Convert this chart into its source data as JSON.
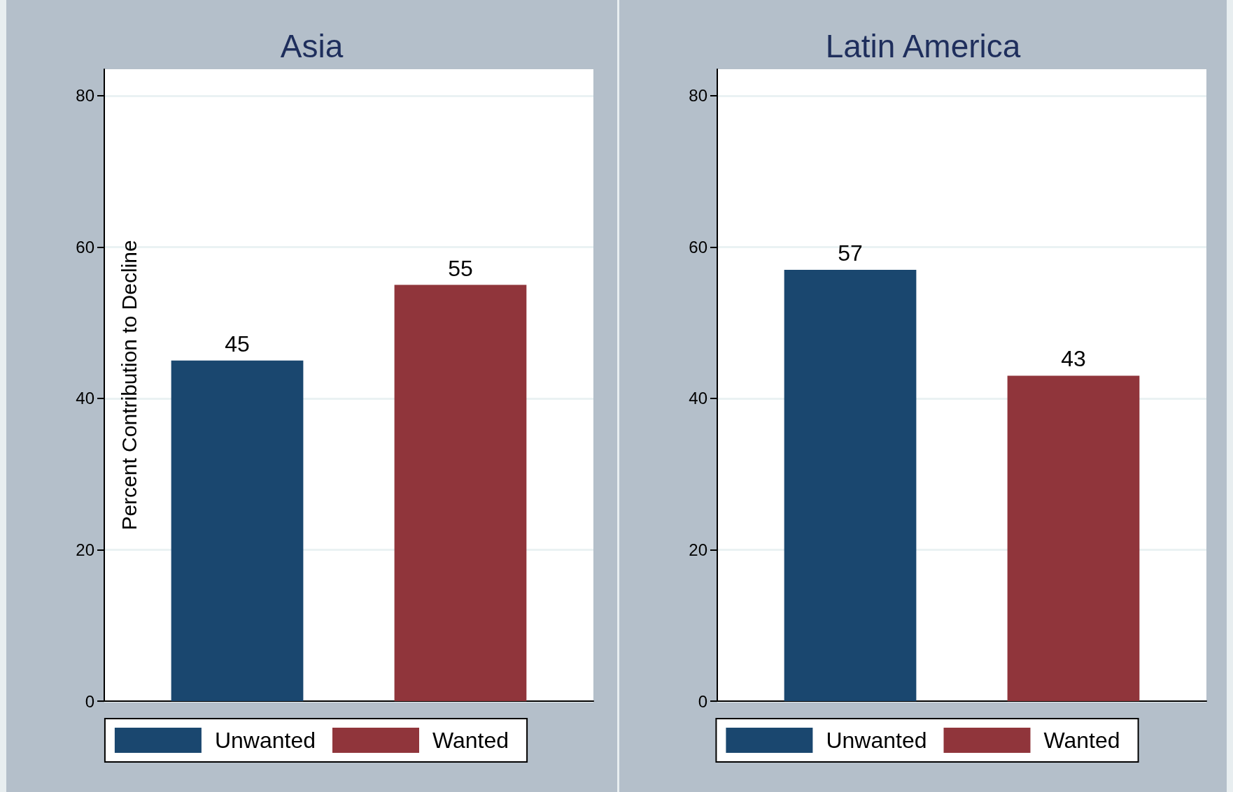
{
  "chart_data": [
    {
      "type": "bar",
      "title": "Asia",
      "ylabel": "Percent Contribution to Decline",
      "categories": [
        null
      ],
      "series": [
        {
          "name": "Unwanted",
          "color": "#1a476f",
          "values": [
            45
          ]
        },
        {
          "name": "Wanted",
          "color": "#90353b",
          "values": [
            55
          ]
        }
      ],
      "ylim": [
        0,
        83.5
      ],
      "yticks": [
        0,
        20,
        40,
        60,
        80
      ],
      "grid": "y",
      "legend": "bottom",
      "data_labels": true
    },
    {
      "type": "bar",
      "title": "Latin America",
      "categories": [
        null
      ],
      "series": [
        {
          "name": "Unwanted",
          "color": "#1a476f",
          "values": [
            57
          ]
        },
        {
          "name": "Wanted",
          "color": "#90353b",
          "values": [
            43
          ]
        }
      ],
      "ylim": [
        0,
        83.5
      ],
      "yticks": [
        0,
        20,
        40,
        60,
        80
      ],
      "grid": "y",
      "legend": "bottom",
      "data_labels": true
    }
  ]
}
